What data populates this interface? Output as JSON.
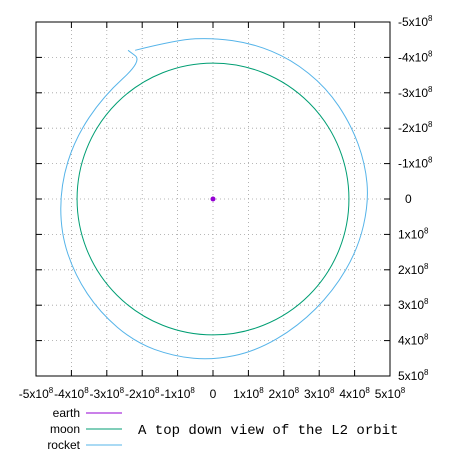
{
  "chart_data": {
    "type": "line",
    "title": "",
    "xlabel": "",
    "ylabel": "",
    "xlim": [
      -500000000,
      500000000
    ],
    "ylim": [
      500000000,
      -500000000
    ],
    "y_axis_position": "right",
    "y_axis_inverted": true,
    "grid": true,
    "legend_placement": "bottom-left",
    "x_ticks": [
      {
        "value": -500000000,
        "mantissa": "-5x10",
        "exp": "8"
      },
      {
        "value": -400000000,
        "mantissa": "-4x10",
        "exp": "8"
      },
      {
        "value": -300000000,
        "mantissa": "-3x10",
        "exp": "8"
      },
      {
        "value": -200000000,
        "mantissa": "-2x10",
        "exp": "8"
      },
      {
        "value": -100000000,
        "mantissa": "-1x10",
        "exp": "8"
      },
      {
        "value": 0,
        "mantissa": "0",
        "exp": ""
      },
      {
        "value": 100000000,
        "mantissa": "1x10",
        "exp": "8"
      },
      {
        "value": 200000000,
        "mantissa": "2x10",
        "exp": "8"
      },
      {
        "value": 300000000,
        "mantissa": "3x10",
        "exp": "8"
      },
      {
        "value": 400000000,
        "mantissa": "4x10",
        "exp": "8"
      },
      {
        "value": 500000000,
        "mantissa": "5x10",
        "exp": "8"
      }
    ],
    "y_ticks": [
      {
        "value": -500000000,
        "mantissa": "-5x10",
        "exp": "8"
      },
      {
        "value": -400000000,
        "mantissa": "-4x10",
        "exp": "8"
      },
      {
        "value": -300000000,
        "mantissa": "-3x10",
        "exp": "8"
      },
      {
        "value": -200000000,
        "mantissa": "-2x10",
        "exp": "8"
      },
      {
        "value": -100000000,
        "mantissa": "-1x10",
        "exp": "8"
      },
      {
        "value": 0,
        "mantissa": "0",
        "exp": ""
      },
      {
        "value": 100000000,
        "mantissa": "1x10",
        "exp": "8"
      },
      {
        "value": 200000000,
        "mantissa": "2x10",
        "exp": "8"
      },
      {
        "value": 300000000,
        "mantissa": "3x10",
        "exp": "8"
      },
      {
        "value": 400000000,
        "mantissa": "4x10",
        "exp": "8"
      },
      {
        "value": 500000000,
        "mantissa": "5x10",
        "exp": "8"
      }
    ],
    "series": [
      {
        "name": "earth",
        "color": "#9400d3",
        "x": [
          0
        ],
        "y": [
          0
        ]
      },
      {
        "name": "moon",
        "color": "#009e73",
        "x": [
          384000000,
          332554000,
          192000000,
          0,
          -192000000,
          -332554000,
          -384000000,
          -332554000,
          -192000000,
          0,
          192000000,
          332554000,
          384000000
        ],
        "y": [
          0,
          192000000,
          332554000,
          384000000,
          332554000,
          192000000,
          0,
          -192000000,
          -332554000,
          -384000000,
          -332554000,
          -192000000,
          0
        ]
      },
      {
        "name": "rocket",
        "color": "#56b4e9",
        "x": [
          -220000000,
          -100000000,
          0,
          110000000,
          220000000,
          320000000,
          390000000,
          430000000,
          440000000,
          410000000,
          340000000,
          240000000,
          120000000,
          0,
          -110000000,
          -220000000,
          -320000000,
          -390000000,
          -430000000,
          -430000000,
          -390000000,
          -310000000,
          -200000000,
          -240000000
        ],
        "y": [
          -420000000,
          -450000000,
          -455000000,
          -440000000,
          -395000000,
          -315000000,
          -210000000,
          -100000000,
          10000000,
          140000000,
          260000000,
          360000000,
          430000000,
          455000000,
          445000000,
          405000000,
          320000000,
          215000000,
          95000000,
          -40000000,
          -170000000,
          -290000000,
          -390000000,
          -420000000
        ]
      }
    ],
    "annotations": [
      {
        "text": "A top down view of the L2 orbit"
      }
    ]
  }
}
